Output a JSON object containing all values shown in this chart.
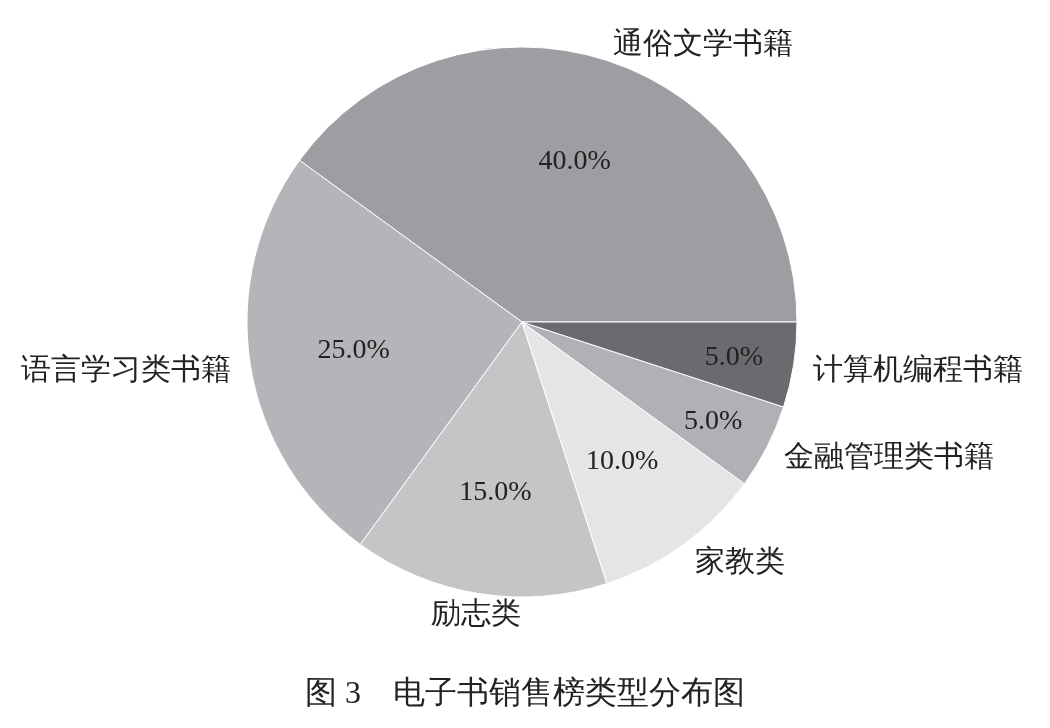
{
  "chart_data": {
    "type": "pie",
    "title": "图 3　电子书销售榜类型分布图",
    "categories": [
      "通俗文学书籍",
      "语言学习类书籍",
      "励志类",
      "家教类",
      "金融管理类书籍",
      "计算机编程书籍"
    ],
    "values": [
      40,
      25,
      15,
      10,
      5,
      5
    ],
    "colors": [
      "#9d9ea2",
      "#b4b5b8",
      "#c4c5c7",
      "#e5e5e7",
      "#b0b1b4",
      "#6a6b6e"
    ],
    "value_labels": [
      "40.0%",
      "25.0%",
      "15.0%",
      "10.0%",
      "5.0%",
      "5.0%"
    ]
  }
}
